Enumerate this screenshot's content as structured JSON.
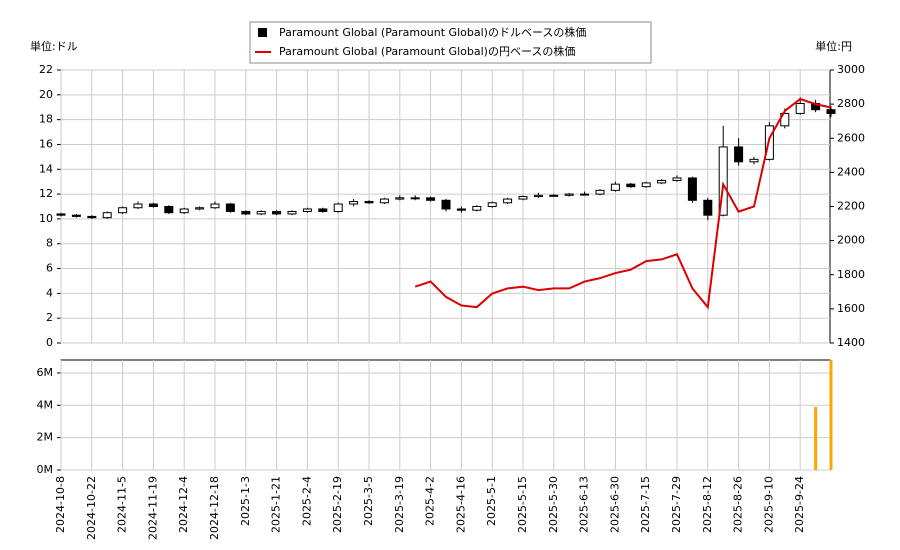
{
  "chart_data": {
    "type": "candlestick",
    "y_label": "単位:ドル",
    "y2_label": "単位:円",
    "categories": [
      "2024-10-8",
      null,
      "2024-10-22",
      null,
      "2024-11-5",
      null,
      "2024-11-19",
      null,
      "2024-12-4",
      null,
      "2024-12-18",
      null,
      "2025-1-3",
      null,
      "2025-1-21",
      null,
      "2025-2-4",
      null,
      "2025-2-19",
      null,
      "2025-3-5",
      null,
      "2025-3-19",
      null,
      "2025-4-2",
      null,
      "2025-4-16",
      null,
      "2025-5-1",
      null,
      "2025-5-15",
      null,
      "2025-5-30",
      null,
      "2025-6-13",
      null,
      "2025-6-30",
      null,
      "2025-7-15",
      null,
      "2025-7-29",
      null,
      "2025-8-12",
      null,
      "2025-8-26",
      null,
      "2025-9-10",
      null,
      "2025-9-24",
      null,
      null
    ],
    "series": [
      {
        "name": "Paramount Global (Paramount Global)のドルベースの株価",
        "color": "#000000",
        "open": [
          10.4,
          10.3,
          10.2,
          10.1,
          10.5,
          10.9,
          11.2,
          11.0,
          10.5,
          10.8,
          10.9,
          11.2,
          10.6,
          10.4,
          10.6,
          10.4,
          10.6,
          10.8,
          10.6,
          11.2,
          11.4,
          11.3,
          11.6,
          11.7,
          11.7,
          11.5,
          10.8,
          10.7,
          11.0,
          11.3,
          11.6,
          11.8,
          11.9,
          11.9,
          12.0,
          12.0,
          12.3,
          12.8,
          12.6,
          12.9,
          13.1,
          13.3,
          11.5,
          10.3,
          15.8,
          14.6,
          14.8,
          17.5,
          18.5,
          19.3,
          18.8
        ],
        "high": [
          10.5,
          10.4,
          10.3,
          10.6,
          11.0,
          11.4,
          11.3,
          11.1,
          10.9,
          11.0,
          11.4,
          11.3,
          10.7,
          10.7,
          10.7,
          10.7,
          10.9,
          10.9,
          11.3,
          11.6,
          11.5,
          11.7,
          11.9,
          11.9,
          11.8,
          11.6,
          11.0,
          11.1,
          11.4,
          11.7,
          11.9,
          12.1,
          12.0,
          12.1,
          12.2,
          12.4,
          13.0,
          12.9,
          13.0,
          13.2,
          13.5,
          13.4,
          11.7,
          17.5,
          16.5,
          15.0,
          17.8,
          18.9,
          19.8,
          19.6,
          19.1
        ],
        "low": [
          10.2,
          10.1,
          10.0,
          10.0,
          10.4,
          10.8,
          10.9,
          10.4,
          10.4,
          10.7,
          10.8,
          10.5,
          10.3,
          10.3,
          10.3,
          10.3,
          10.5,
          10.5,
          10.5,
          11.0,
          11.2,
          11.2,
          11.5,
          11.5,
          11.4,
          10.6,
          10.5,
          10.6,
          10.9,
          11.2,
          11.5,
          11.7,
          11.8,
          11.8,
          11.9,
          11.9,
          12.2,
          12.5,
          12.5,
          12.8,
          13.0,
          11.3,
          9.9,
          10.2,
          14.3,
          14.4,
          14.7,
          17.3,
          18.4,
          18.6,
          18.2
        ],
        "close": [
          10.3,
          10.2,
          10.1,
          10.5,
          10.9,
          11.2,
          11.0,
          10.5,
          10.8,
          10.9,
          11.2,
          10.6,
          10.4,
          10.6,
          10.4,
          10.6,
          10.8,
          10.6,
          11.2,
          11.4,
          11.3,
          11.6,
          11.7,
          11.7,
          11.5,
          10.8,
          10.7,
          11.0,
          11.3,
          11.6,
          11.8,
          11.9,
          11.9,
          12.0,
          12.0,
          12.3,
          12.8,
          12.6,
          12.9,
          13.1,
          13.3,
          11.5,
          10.3,
          15.8,
          14.6,
          14.8,
          17.5,
          18.5,
          19.3,
          18.8,
          18.5
        ]
      },
      {
        "name": "Paramount Global (Paramount Global)の円ベースの株価",
        "color": "#dd0000",
        "axis": "y2",
        "values": [
          null,
          null,
          null,
          null,
          null,
          null,
          null,
          null,
          null,
          null,
          null,
          null,
          null,
          null,
          null,
          null,
          null,
          null,
          null,
          null,
          null,
          null,
          null,
          1730,
          1760,
          1670,
          1620,
          1610,
          1690,
          1720,
          1730,
          1710,
          1720,
          1720,
          1760,
          1780,
          1810,
          1830,
          1880,
          1890,
          1920,
          1720,
          1610,
          2330,
          2170,
          2200,
          2600,
          2760,
          2830,
          2800,
          2780
        ]
      }
    ],
    "ylim": [
      0,
      22
    ],
    "yticks": [
      0,
      2,
      4,
      6,
      8,
      10,
      12,
      14,
      16,
      18,
      20,
      22
    ],
    "y2lim": [
      1400,
      3000
    ],
    "y2ticks": [
      1400,
      1600,
      1800,
      2000,
      2200,
      2400,
      2600,
      2800,
      3000
    ],
    "grid": true,
    "volume": {
      "color": "#ffa500",
      "values": [
        null,
        null,
        null,
        null,
        null,
        null,
        null,
        null,
        null,
        null,
        null,
        null,
        null,
        null,
        null,
        null,
        null,
        null,
        null,
        null,
        null,
        null,
        null,
        null,
        null,
        null,
        null,
        null,
        null,
        null,
        null,
        null,
        null,
        null,
        null,
        null,
        null,
        null,
        null,
        null,
        null,
        null,
        null,
        null,
        null,
        null,
        null,
        null,
        null,
        3900000,
        6800000
      ],
      "ylim": [
        0,
        6800000
      ],
      "yticks": [
        {
          "value": 0,
          "label": "0M"
        },
        {
          "value": 2000000,
          "label": "2M"
        },
        {
          "value": 4000000,
          "label": "4M"
        },
        {
          "value": 6000000,
          "label": "6M"
        }
      ]
    }
  }
}
